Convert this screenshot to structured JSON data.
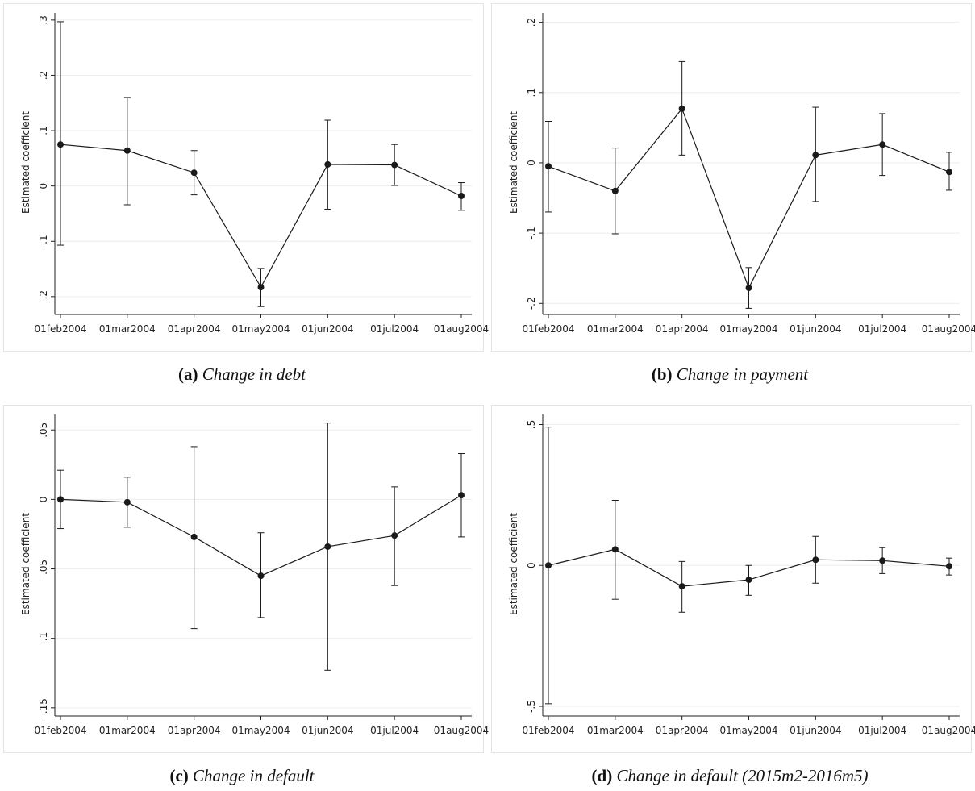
{
  "chart_data": [
    {
      "type": "line",
      "caption_label": "(a)",
      "caption": "Change in debt",
      "ylabel": "Estimated coefficient",
      "categories": [
        "01feb2004",
        "01mar2004",
        "01apr2004",
        "01may2004",
        "01jun2004",
        "01jul2004",
        "01aug2004"
      ],
      "values": [
        0.075,
        0.064,
        0.024,
        -0.183,
        0.039,
        0.038,
        -0.018
      ],
      "lower": [
        -0.107,
        -0.034,
        -0.016,
        -0.218,
        -0.042,
        0.001,
        -0.044
      ],
      "upper": [
        0.297,
        0.16,
        0.064,
        -0.149,
        0.119,
        0.075,
        0.006
      ],
      "ylim": [
        -0.225,
        0.31
      ],
      "yticks": [
        {
          "value": -0.2,
          "label": "-.2"
        },
        {
          "value": -0.1,
          "label": "-.1"
        },
        0,
        {
          "value": 0.1,
          "label": ".1"
        },
        {
          "value": 0.2,
          "label": ".2"
        },
        {
          "value": 0.3,
          "label": ".3"
        }
      ],
      "grid": true,
      "color": "#1a1a1a"
    },
    {
      "type": "line",
      "caption_label": "(b)",
      "caption": "Change in payment",
      "ylabel": "Estimated coefficient",
      "categories": [
        "01feb2004",
        "01mar2004",
        "01apr2004",
        "01may2004",
        "01jun2004",
        "01jul2004",
        "01aug2004"
      ],
      "values": [
        -0.005,
        -0.04,
        0.077,
        -0.178,
        0.011,
        0.026,
        -0.013
      ],
      "lower": [
        -0.07,
        -0.101,
        0.011,
        -0.207,
        -0.055,
        -0.018,
        -0.039
      ],
      "upper": [
        0.059,
        0.021,
        0.144,
        -0.149,
        0.079,
        0.07,
        0.015
      ],
      "ylim": [
        -0.21,
        0.211
      ],
      "yticks": [
        {
          "value": -0.2,
          "label": "-.2"
        },
        {
          "value": -0.1,
          "label": "-.1"
        },
        0,
        {
          "value": 0.1,
          "label": ".1"
        },
        {
          "value": 0.2,
          "label": ".2"
        }
      ],
      "grid": true,
      "color": "#1a1a1a"
    },
    {
      "type": "line",
      "caption_label": "(c)",
      "caption": "Change in default",
      "ylabel": "Estimated coefficient",
      "categories": [
        "01feb2004",
        "01mar2004",
        "01apr2004",
        "01may2004",
        "01jun2004",
        "01jul2004",
        "01aug2004"
      ],
      "values": [
        0.0,
        -0.002,
        -0.027,
        -0.055,
        -0.034,
        -0.026,
        0.003
      ],
      "lower": [
        -0.021,
        -0.02,
        -0.093,
        -0.085,
        -0.123,
        -0.062,
        -0.027
      ],
      "upper": [
        0.021,
        0.016,
        0.038,
        -0.024,
        0.055,
        0.009,
        0.033
      ],
      "ylim": [
        -0.153,
        0.06
      ],
      "yticks": [
        {
          "value": -0.15,
          "label": "-.15"
        },
        {
          "value": -0.1,
          "label": "-.1"
        },
        {
          "value": -0.05,
          "label": "-.05"
        },
        0,
        {
          "value": 0.05,
          "label": ".05"
        }
      ],
      "grid": true,
      "color": "#1a1a1a"
    },
    {
      "type": "line",
      "caption_label": "(d)",
      "caption": "Change in default (2015m2-2016m5)",
      "ylabel": "Estimated coefficient",
      "categories": [
        "01feb2004",
        "01mar2004",
        "01apr2004",
        "01may2004",
        "01jun2004",
        "01jul2004",
        "01aug2004"
      ],
      "values": [
        0.0,
        0.057,
        -0.074,
        -0.051,
        0.02,
        0.017,
        -0.003
      ],
      "lower": [
        -0.491,
        -0.12,
        -0.166,
        -0.106,
        -0.063,
        -0.029,
        -0.034
      ],
      "upper": [
        0.491,
        0.231,
        0.014,
        0.0,
        0.103,
        0.063,
        0.026
      ],
      "ylim": [
        -0.52,
        0.53
      ],
      "yticks": [
        {
          "value": -0.5,
          "label": "-.5"
        },
        0,
        {
          "value": 0.5,
          "label": ".5"
        }
      ],
      "grid": true,
      "color": "#1a1a1a"
    }
  ]
}
